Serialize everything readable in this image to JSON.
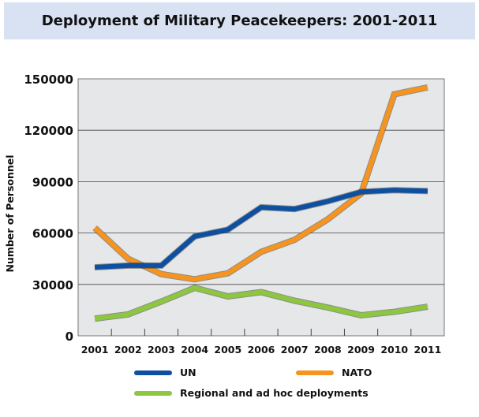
{
  "chart_data": {
    "type": "line",
    "title": "Deployment of Military Peacekeepers: 2001-2011",
    "xlabel": "",
    "ylabel": "Number of Personnel",
    "categories": [
      "2001",
      "2002",
      "2003",
      "2004",
      "2005",
      "2006",
      "2007",
      "2008",
      "2009",
      "2010",
      "2011"
    ],
    "ylim": [
      0,
      150000
    ],
    "yticks": [
      "0",
      "30000",
      "60000",
      "90000",
      "120000",
      "150000"
    ],
    "grid": true,
    "legend": "bottom",
    "series": [
      {
        "name": "UN",
        "color": "#0d4fa0",
        "values": [
          40000,
          41000,
          41000,
          58000,
          62000,
          75000,
          74000,
          78500,
          84000,
          85000,
          84500
        ]
      },
      {
        "name": "NATO",
        "color": "#f7941d",
        "values": [
          63000,
          45000,
          36000,
          33000,
          36500,
          49000,
          56000,
          68000,
          83000,
          141000,
          145000
        ]
      },
      {
        "name": "Regional and ad hoc deployments",
        "color": "#8dc63f",
        "values": [
          10000,
          12500,
          20000,
          28000,
          23000,
          25500,
          20500,
          16500,
          12000,
          14000,
          17000
        ]
      }
    ]
  }
}
